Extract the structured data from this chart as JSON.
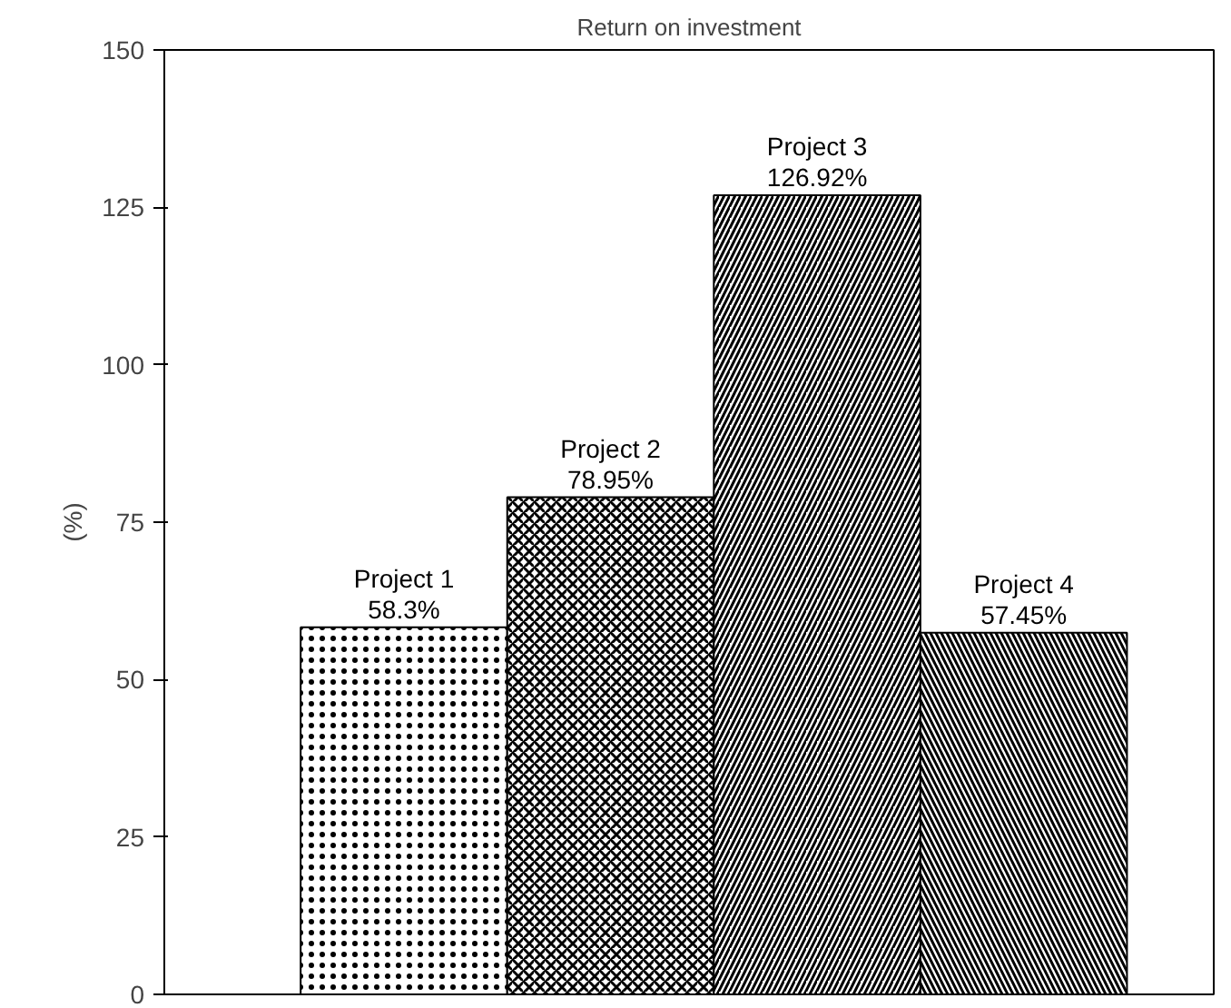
{
  "chart_data": {
    "type": "bar",
    "title": "Return on investment",
    "ylabel": "(%)",
    "categories": [
      "Project 1",
      "Project 2",
      "Project 3",
      "Project 4"
    ],
    "values": [
      58.3,
      78.95,
      126.92,
      57.45
    ],
    "value_labels": [
      "58.3%",
      "78.95%",
      "126.92%",
      "57.45%"
    ],
    "color": "#000000",
    "ylim": [
      0,
      150
    ],
    "yticks": [
      0,
      25,
      50,
      75,
      100,
      125,
      150
    ],
    "grid": false,
    "tick_labels": "y"
  }
}
